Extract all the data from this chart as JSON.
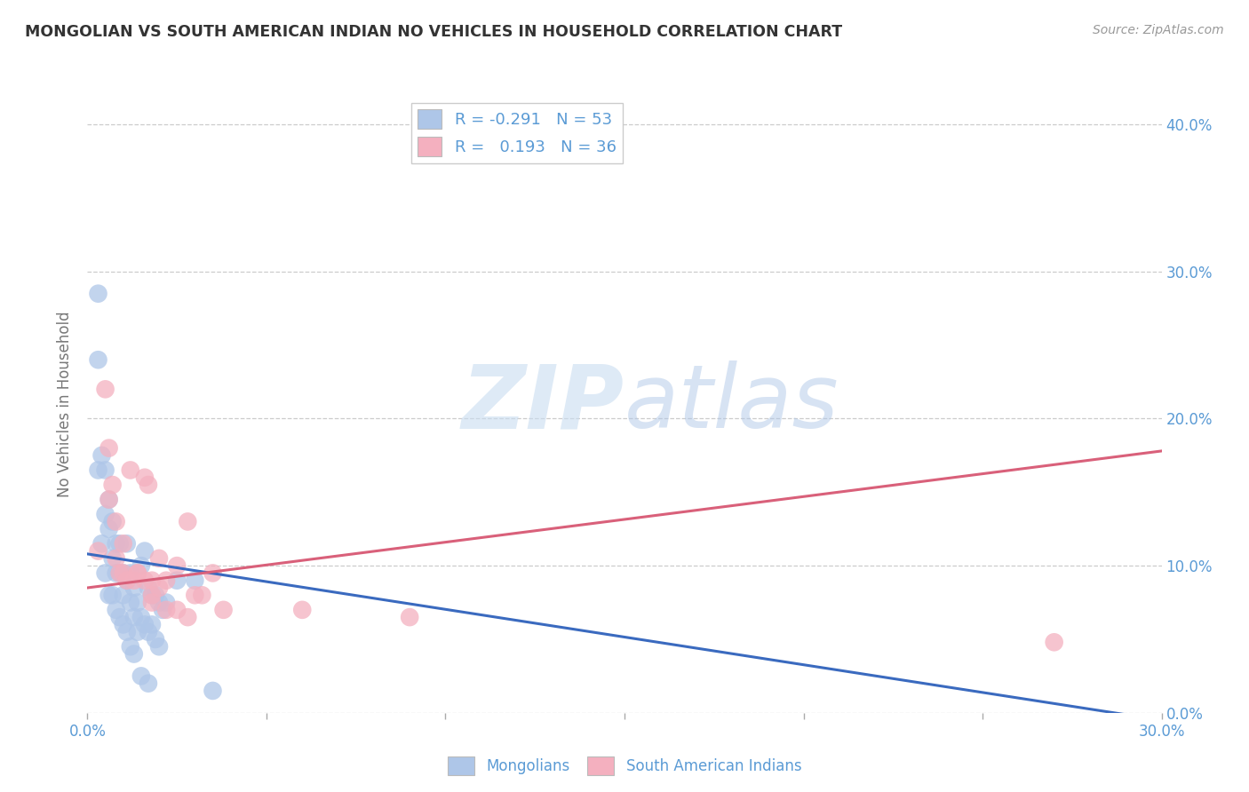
{
  "title": "MONGOLIAN VS SOUTH AMERICAN INDIAN NO VEHICLES IN HOUSEHOLD CORRELATION CHART",
  "source": "Source: ZipAtlas.com",
  "ylabel": "No Vehicles in Household",
  "xlim": [
    0.0,
    0.3
  ],
  "ylim": [
    0.0,
    0.42
  ],
  "xticks": [
    0.0,
    0.05,
    0.1,
    0.15,
    0.2,
    0.25,
    0.3
  ],
  "xtick_labels": [
    "0.0%",
    "",
    "",
    "",
    "",
    "",
    "30.0%"
  ],
  "yticks": [
    0.0,
    0.1,
    0.2,
    0.3,
    0.4
  ],
  "ytick_labels_right": [
    "0.0%",
    "10.0%",
    "20.0%",
    "30.0%",
    "40.0%"
  ],
  "mongolian_color": "#aec6e8",
  "mongolian_line_color": "#3a6abf",
  "sai_color": "#f4b0bf",
  "sai_line_color": "#d9607a",
  "mongolian_R": -0.291,
  "mongolian_N": 53,
  "sai_R": 0.193,
  "sai_N": 36,
  "background_color": "#ffffff",
  "grid_color": "#cccccc",
  "tick_label_color": "#5b9bd5",
  "watermark_color": "#ddeeff",
  "mongolian_x": [
    0.003,
    0.004,
    0.005,
    0.006,
    0.007,
    0.008,
    0.009,
    0.01,
    0.011,
    0.012,
    0.013,
    0.014,
    0.015,
    0.016,
    0.017,
    0.018,
    0.019,
    0.02,
    0.021,
    0.022,
    0.003,
    0.004,
    0.005,
    0.006,
    0.007,
    0.008,
    0.009,
    0.01,
    0.011,
    0.012,
    0.013,
    0.014,
    0.015,
    0.016,
    0.017,
    0.018,
    0.019,
    0.02,
    0.005,
    0.006,
    0.007,
    0.008,
    0.009,
    0.01,
    0.011,
    0.012,
    0.013,
    0.025,
    0.03,
    0.035,
    0.015,
    0.017,
    0.003
  ],
  "mongolian_y": [
    0.285,
    0.115,
    0.135,
    0.125,
    0.105,
    0.095,
    0.115,
    0.095,
    0.115,
    0.095,
    0.085,
    0.075,
    0.1,
    0.11,
    0.085,
    0.08,
    0.08,
    0.075,
    0.07,
    0.075,
    0.165,
    0.175,
    0.165,
    0.145,
    0.13,
    0.115,
    0.095,
    0.08,
    0.09,
    0.075,
    0.065,
    0.055,
    0.065,
    0.06,
    0.055,
    0.06,
    0.05,
    0.045,
    0.095,
    0.08,
    0.08,
    0.07,
    0.065,
    0.06,
    0.055,
    0.045,
    0.04,
    0.09,
    0.09,
    0.015,
    0.025,
    0.02,
    0.24
  ],
  "sai_x": [
    0.003,
    0.005,
    0.006,
    0.007,
    0.008,
    0.009,
    0.01,
    0.011,
    0.012,
    0.013,
    0.014,
    0.016,
    0.017,
    0.018,
    0.02,
    0.022,
    0.025,
    0.028,
    0.03,
    0.032,
    0.035,
    0.038,
    0.006,
    0.008,
    0.01,
    0.014,
    0.018,
    0.022,
    0.016,
    0.018,
    0.02,
    0.025,
    0.028,
    0.06,
    0.09,
    0.27
  ],
  "sai_y": [
    0.11,
    0.22,
    0.18,
    0.155,
    0.105,
    0.095,
    0.095,
    0.09,
    0.165,
    0.09,
    0.095,
    0.09,
    0.155,
    0.075,
    0.105,
    0.07,
    0.1,
    0.13,
    0.08,
    0.08,
    0.095,
    0.07,
    0.145,
    0.13,
    0.115,
    0.095,
    0.08,
    0.09,
    0.16,
    0.09,
    0.085,
    0.07,
    0.065,
    0.07,
    0.065,
    0.048
  ],
  "blue_line_x": [
    0.0,
    0.3
  ],
  "blue_line_y_start": 0.108,
  "blue_line_y_end": -0.005,
  "pink_line_x": [
    0.0,
    0.3
  ],
  "pink_line_y_start": 0.085,
  "pink_line_y_end": 0.178
}
